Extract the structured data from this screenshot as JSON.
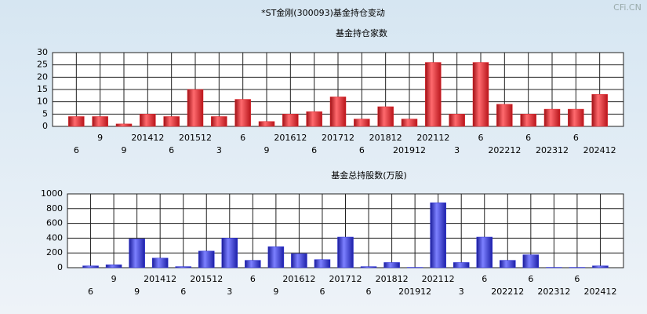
{
  "title": "*ST金刚(300093)基金持仓变动",
  "watermark": "CFi.CN",
  "chart_data": [
    {
      "type": "bar",
      "title": "基金持仓家数",
      "categories": [
        "6",
        "9",
        "9",
        "201412",
        "6",
        "201512",
        "3",
        "6",
        "9",
        "201612",
        "6",
        "201712",
        "6",
        "201812",
        "201912",
        "202112",
        "3",
        "6",
        "202212",
        "6",
        "202312",
        "6",
        "202412"
      ],
      "values": [
        4,
        4,
        1,
        5,
        4,
        15,
        4,
        11,
        2,
        5,
        6,
        12,
        3,
        8,
        3,
        26,
        5,
        26,
        9,
        5,
        7,
        7,
        13
      ],
      "color": "#e0282e",
      "ylim": [
        0,
        30
      ],
      "yticks": [
        0,
        5,
        10,
        15,
        20,
        25,
        30
      ],
      "grid": true
    },
    {
      "type": "bar",
      "title": "基金总持股数(万股)",
      "categories": [
        "6",
        "9",
        "9",
        "201412",
        "6",
        "201512",
        "3",
        "6",
        "9",
        "201612",
        "6",
        "201712",
        "6",
        "201812",
        "201912",
        "202112",
        "3",
        "6",
        "202212",
        "6",
        "202312",
        "6",
        "202412"
      ],
      "values": [
        25,
        40,
        390,
        130,
        15,
        225,
        400,
        100,
        285,
        190,
        110,
        415,
        15,
        70,
        5,
        880,
        70,
        415,
        100,
        175,
        5,
        5,
        25
      ],
      "color": "#2a2ed6",
      "ylim": [
        0,
        1000
      ],
      "yticks": [
        0,
        200,
        400,
        600,
        800,
        1000
      ],
      "grid": true
    }
  ]
}
